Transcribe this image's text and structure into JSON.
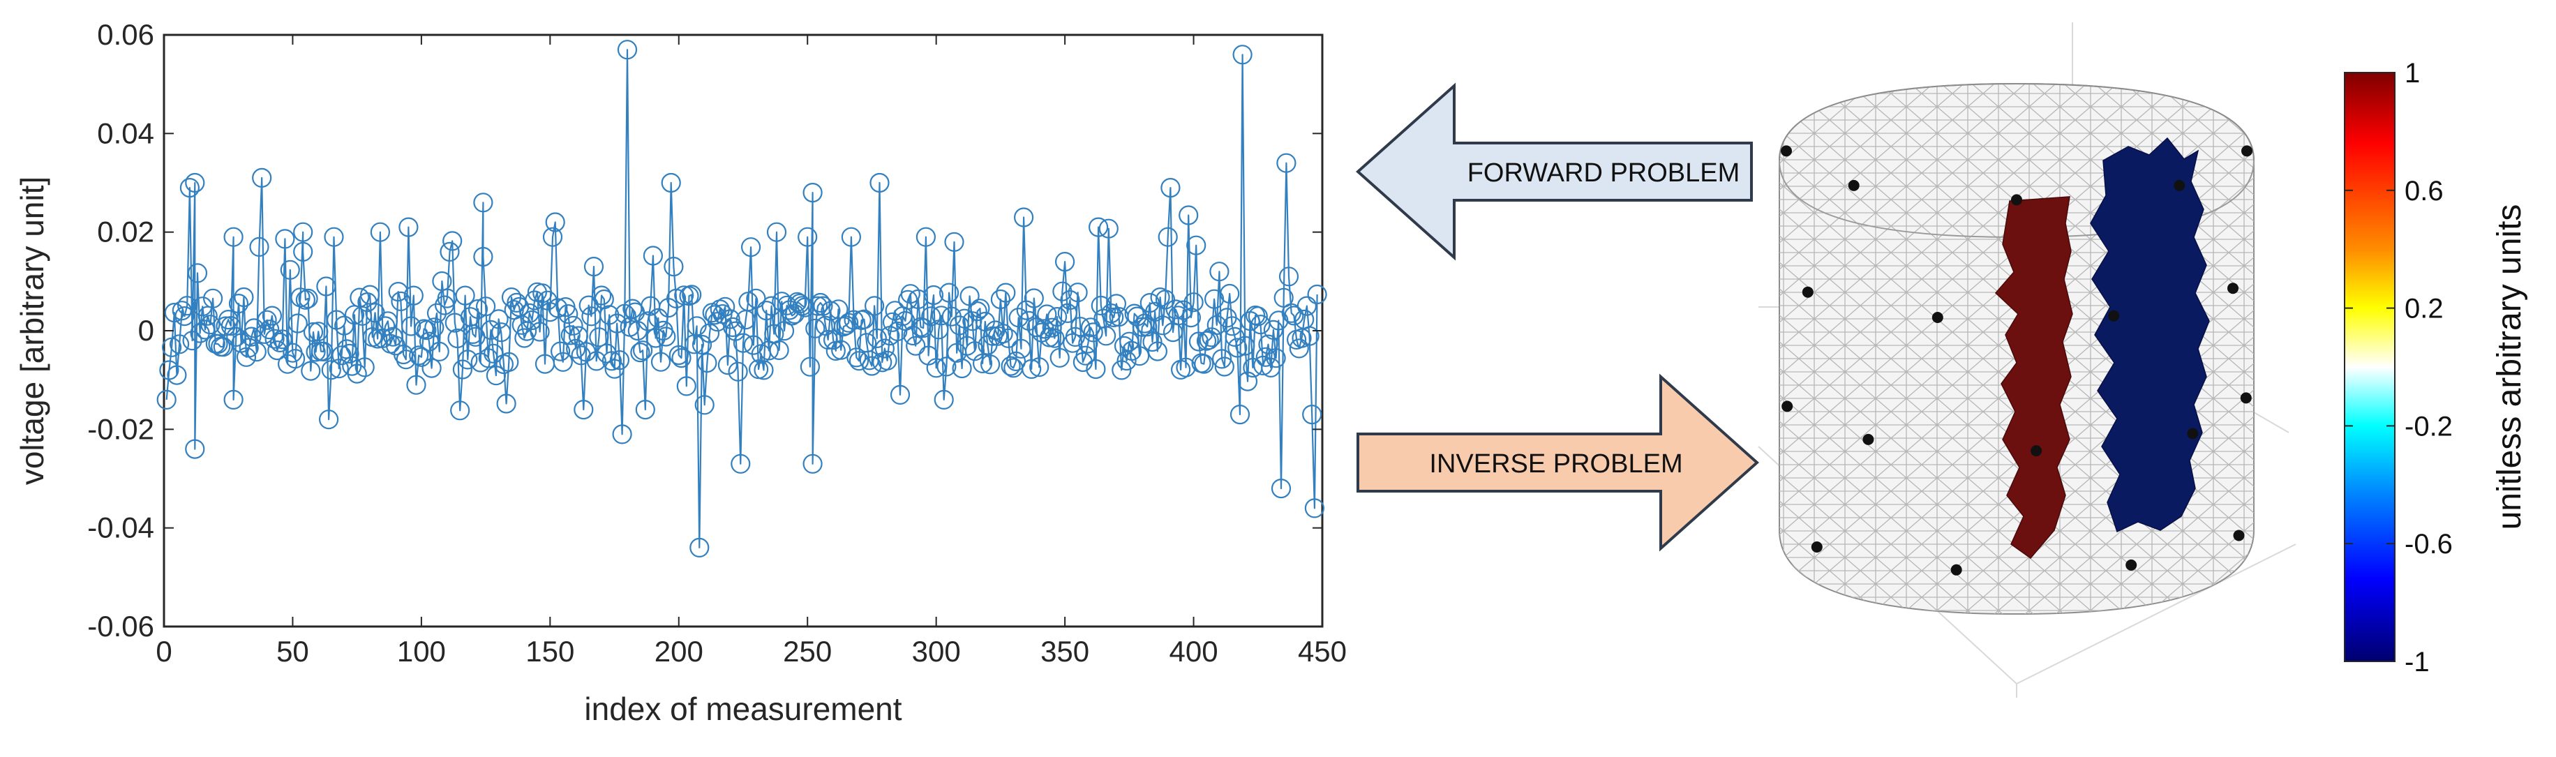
{
  "plot": {
    "xlabel": "index of measurement",
    "ylabel": "voltage [arbitrary unit]",
    "xlim": [
      0,
      450
    ],
    "ylim": [
      -0.06,
      0.06
    ],
    "xticks": [
      "0",
      "50",
      "100",
      "150",
      "200",
      "250",
      "300",
      "350",
      "400",
      "450"
    ],
    "yticks": [
      "0.06",
      "0.04",
      "0.02",
      "0",
      "-0.02",
      "-0.04",
      "-0.06"
    ]
  },
  "chart_data": {
    "type": "line",
    "marker": "circle",
    "color": "#3380C0",
    "x_range": [
      1,
      448
    ],
    "xlim": [
      0,
      450
    ],
    "ylim": [
      -0.06,
      0.06
    ],
    "grid": false,
    "legend": "none",
    "series": [
      {
        "highlighted_points": [
          {
            "x": 1,
            "y": -0.014
          },
          {
            "x": 5,
            "y": -0.009
          },
          {
            "x": 10,
            "y": 0.029
          },
          {
            "x": 12,
            "y": 0.03
          },
          {
            "x": 12,
            "y": -0.024
          },
          {
            "x": 27,
            "y": 0.019
          },
          {
            "x": 27,
            "y": -0.014
          },
          {
            "x": 38,
            "y": 0.031
          },
          {
            "x": 37,
            "y": 0.017
          },
          {
            "x": 54,
            "y": 0.02
          },
          {
            "x": 54,
            "y": 0.016
          },
          {
            "x": 64,
            "y": -0.018
          },
          {
            "x": 66,
            "y": 0.019
          },
          {
            "x": 84,
            "y": 0.02
          },
          {
            "x": 95,
            "y": 0.021
          },
          {
            "x": 98,
            "y": -0.011
          },
          {
            "x": 111,
            "y": 0.016
          },
          {
            "x": 124,
            "y": 0.026
          },
          {
            "x": 124,
            "y": 0.015
          },
          {
            "x": 152,
            "y": 0.022
          },
          {
            "x": 151,
            "y": 0.019
          },
          {
            "x": 163,
            "y": -0.016
          },
          {
            "x": 167,
            "y": 0.013
          },
          {
            "x": 180,
            "y": 0.057
          },
          {
            "x": 178,
            "y": -0.021
          },
          {
            "x": 187,
            "y": -0.016
          },
          {
            "x": 197,
            "y": 0.03
          },
          {
            "x": 198,
            "y": 0.013
          },
          {
            "x": 208,
            "y": -0.044
          },
          {
            "x": 224,
            "y": -0.027
          },
          {
            "x": 238,
            "y": 0.02
          },
          {
            "x": 250,
            "y": 0.019
          },
          {
            "x": 252,
            "y": 0.028
          },
          {
            "x": 252,
            "y": -0.027
          },
          {
            "x": 267,
            "y": 0.019
          },
          {
            "x": 278,
            "y": 0.03
          },
          {
            "x": 286,
            "y": -0.013
          },
          {
            "x": 296,
            "y": 0.019
          },
          {
            "x": 303,
            "y": -0.014
          },
          {
            "x": 307,
            "y": 0.018
          },
          {
            "x": 334,
            "y": 0.023
          },
          {
            "x": 350,
            "y": 0.014
          },
          {
            "x": 363,
            "y": 0.021
          },
          {
            "x": 391,
            "y": 0.029
          },
          {
            "x": 390,
            "y": 0.019
          },
          {
            "x": 410,
            "y": 0.012
          },
          {
            "x": 419,
            "y": 0.056
          },
          {
            "x": 418,
            "y": -0.017
          },
          {
            "x": 434,
            "y": -0.032
          },
          {
            "x": 436,
            "y": 0.034
          },
          {
            "x": 437,
            "y": 0.011
          },
          {
            "x": 446,
            "y": -0.017
          },
          {
            "x": 447,
            "y": -0.036
          }
        ]
      }
    ]
  },
  "arrows": {
    "forward": {
      "label": "FORWARD PROBLEM",
      "fill": "#DCE6F2",
      "stroke": "#2F3A4A"
    },
    "inverse": {
      "label": "INVERSE PROBLEM",
      "fill": "#F8CBAD",
      "stroke": "#2F3A4A"
    }
  },
  "mesh": {
    "positive_region_color": "#6B0F0F",
    "negative_region_color": "#0A1A60",
    "electrode_color": "#111111",
    "electrode_count": 32
  },
  "colorbar": {
    "label": "unitless arbitrary units",
    "ticks": [
      "1",
      "0.6",
      "0.2",
      "-0.2",
      "-0.6",
      "-1"
    ],
    "colormap": "jet",
    "range": [
      -1,
      1
    ]
  }
}
